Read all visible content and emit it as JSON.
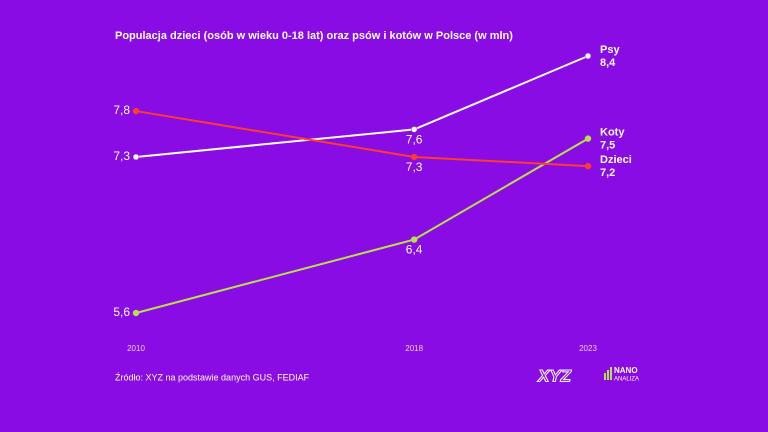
{
  "chart_data": {
    "type": "line",
    "title": "Populacja dzieci (osób w wieku 0-18 lat) oraz psów i kotów w Polsce (w mln)",
    "x": [
      2010,
      2018,
      2023
    ],
    "xlim": [
      2010,
      2023
    ],
    "xticks": [
      2010,
      2018,
      2023
    ],
    "ylim": [
      5.6,
      8.4
    ],
    "series": [
      {
        "name": "Psy",
        "color": "#ffffff",
        "values": [
          7.3,
          7.6,
          8.4
        ],
        "value_labels": [
          "7,3",
          "7,6",
          "8,4"
        ]
      },
      {
        "name": "Koty",
        "color": "#b8e04a",
        "values": [
          5.6,
          6.4,
          7.5
        ],
        "value_labels": [
          "5,6",
          "6,4",
          "7,5"
        ]
      },
      {
        "name": "Dzieci",
        "color": "#ff3b2f",
        "values": [
          7.8,
          7.3,
          7.2
        ],
        "value_labels": [
          "7,8",
          "7,3",
          "7,2"
        ]
      }
    ],
    "source": "Źródło: XYZ na podstawie danych GUS, FEDIAF",
    "logos": [
      "XYZ",
      "NANO",
      "ANALIZA"
    ]
  }
}
